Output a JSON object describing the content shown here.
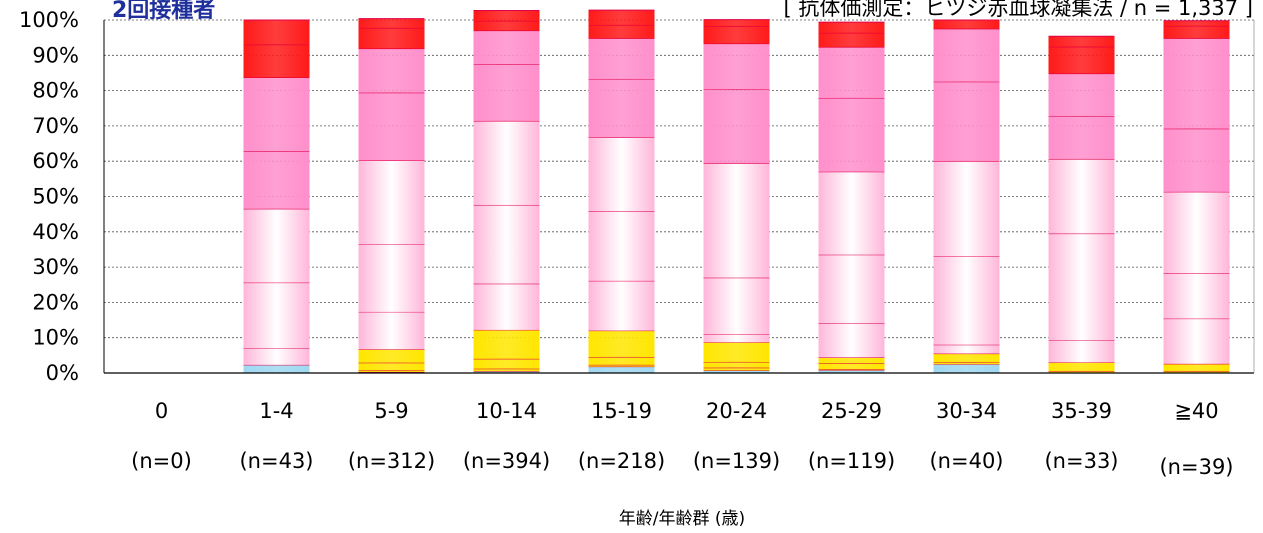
{
  "header": {
    "title": "2回接種者",
    "method": "[ 抗体価測定：ヒツジ赤血球凝集法 / n = 1,337 ]"
  },
  "colors": {
    "light_blue": "#9fd8f0",
    "yellow": "#ffe600",
    "light_pink": "#ffb6d9",
    "pink": "#ff8fcb",
    "red": "#ff1a1a",
    "separator": "#e0004a"
  },
  "chart_data": {
    "type": "bar",
    "stacked": true,
    "percent": true,
    "title": "2回接種者",
    "xlabel": "年齢/年齢群 (歳)",
    "ylabel": "",
    "ylim": [
      0,
      100
    ],
    "yticks": [
      "0%",
      "10%",
      "20%",
      "30%",
      "40%",
      "50%",
      "60%",
      "70%",
      "80%",
      "90%",
      "100%"
    ],
    "categories": [
      "0",
      "1-4",
      "5-9",
      "10-14",
      "15-19",
      "20-24",
      "25-29",
      "30-34",
      "35-39",
      "≧40"
    ],
    "counts": [
      "(n=0)",
      "(n=43)",
      "(n=312)",
      "(n=394)",
      "(n=218)",
      "(n=139)",
      "(n=119)",
      "(n=40)",
      "(n=33)",
      "(n=39)"
    ],
    "series": [
      {
        "color": "light_blue",
        "values": [
          0,
          2.3,
          0.3,
          0.5,
          1.8,
          0.7,
          0.8,
          2.5,
          0,
          0
        ]
      },
      {
        "color": "yellow",
        "values": [
          0,
          0,
          0.4,
          0.7,
          0.5,
          0.8,
          0.2,
          0.5,
          0.5,
          0.5
        ]
      },
      {
        "color": "yellow",
        "values": [
          0,
          0,
          2.2,
          2.8,
          2.2,
          1.6,
          1.7,
          0,
          2.5,
          2.1
        ]
      },
      {
        "color": "yellow",
        "values": [
          0,
          0,
          3.8,
          8.2,
          7.5,
          5.6,
          1.7,
          2.5,
          0,
          0
        ]
      },
      {
        "color": "light_pink",
        "values": [
          0,
          4.7,
          10.6,
          13.1,
          14.1,
          2.2,
          9.7,
          2.5,
          6.2,
          12.8
        ]
      },
      {
        "color": "light_pink",
        "values": [
          0,
          18.6,
          19.2,
          22.3,
          19.7,
          16.1,
          19.4,
          25.0,
          30.3,
          12.8
        ]
      },
      {
        "color": "light_pink",
        "values": [
          0,
          20.9,
          23.7,
          23.8,
          20.9,
          32.4,
          23.5,
          27.0,
          21.1,
          23.1
        ]
      },
      {
        "color": "pink",
        "values": [
          0,
          16.3,
          19.2,
          16.0,
          16.5,
          20.9,
          20.9,
          22.5,
          12.1,
          17.9
        ]
      },
      {
        "color": "pink",
        "values": [
          0,
          20.9,
          12.5,
          9.6,
          11.6,
          13.0,
          14.4,
          15.0,
          12.1,
          25.6
        ]
      },
      {
        "color": "red",
        "values": [
          0,
          9.3,
          5.8,
          2.7,
          3.7,
          4.9,
          4.0,
          0,
          7.6,
          3.5
        ]
      },
      {
        "color": "red",
        "values": [
          0,
          7.0,
          2.7,
          3.0,
          4.3,
          1.9,
          3.1,
          2.5,
          3.0,
          1.5
        ]
      }
    ]
  }
}
